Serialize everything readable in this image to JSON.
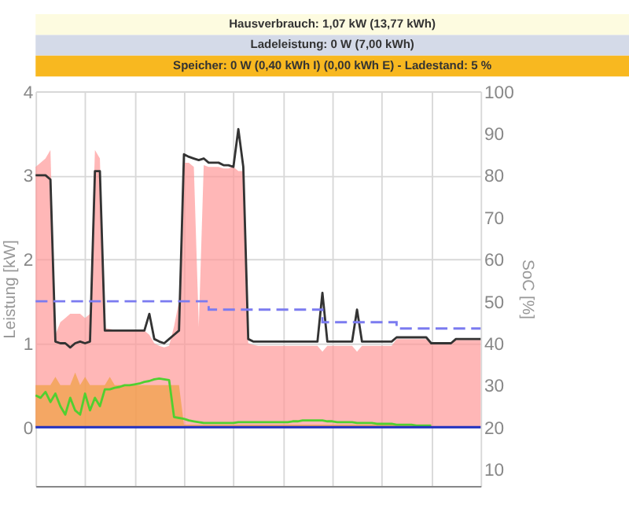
{
  "chart_data": {
    "type": "area",
    "annotations": [
      "Hausverbrauch: 1,07 kW (13,77 kWh)",
      "Ladeleistung: 0 W (7,00 kWh)",
      "Speicher: 0 W (0,40 kWh I) (0,00 kWh E)  - Ladestand: 5 %"
    ],
    "ylabel": "Leistung [kW]",
    "y2label": "SoC [%]",
    "categories": [
      null,
      null,
      null,
      null,
      null,
      null,
      null,
      null,
      null,
      null,
      null,
      null,
      null,
      null,
      null,
      null,
      null,
      null,
      null,
      null,
      null,
      null,
      null,
      null,
      null,
      null,
      null,
      null,
      null,
      null,
      null,
      null,
      null,
      null,
      null,
      null,
      null,
      null,
      null,
      null,
      null,
      null,
      null,
      null,
      null,
      null,
      null,
      null,
      null,
      null,
      null,
      null,
      null,
      null,
      null,
      null,
      null,
      null,
      null,
      null,
      null,
      null,
      null,
      null,
      null,
      null,
      null,
      null,
      null,
      null,
      null,
      null,
      null,
      null,
      null,
      null,
      null,
      null,
      null,
      null,
      null,
      null,
      null,
      null,
      null,
      null,
      null,
      null,
      null,
      null,
      null
    ],
    "series": [
      {
        "color": "#ff9999",
        "values": [
          3.1,
          3.15,
          3.2,
          3.3,
          1.1,
          1.25,
          1.3,
          1.35,
          1.35,
          1.35,
          1.3,
          1.35,
          3.3,
          3.2,
          1.18,
          1.17,
          1.16,
          1.16,
          1.16,
          1.16,
          1.16,
          1.16,
          1.15,
          1.1,
          1.0,
          0.97,
          0.95,
          0.97,
          1.2,
          1.5,
          3.15,
          3.15,
          3.1,
          1.2,
          3.12,
          3.1,
          3.1,
          3.1,
          3.08,
          3.08,
          3.1,
          3.05,
          3.05,
          1.0,
          0.98,
          0.97,
          0.97,
          0.97,
          0.97,
          0.97,
          0.97,
          0.97,
          0.97,
          0.97,
          0.97,
          0.97,
          0.97,
          0.97,
          0.9,
          0.97,
          0.97,
          0.97,
          0.97,
          0.97,
          0.97,
          0.9,
          0.97,
          0.97,
          0.97,
          0.97,
          0.97,
          0.97,
          0.97,
          1.05,
          1.05,
          1.05,
          1.05,
          1.05,
          1.05,
          1.05,
          1.0,
          1.0,
          1.0,
          1.0,
          1.0,
          1.04,
          1.04,
          1.04,
          1.04,
          1.04,
          1.04
        ]
      },
      {
        "color": "#f0a040",
        "values": [
          0.5,
          0.5,
          0.5,
          0.5,
          0.6,
          0.5,
          0.5,
          0.5,
          0.65,
          0.5,
          0.6,
          0.5,
          0.5,
          0.5,
          0.5,
          0.6,
          0.5,
          0.5,
          0.5,
          0.5,
          0.5,
          0.5,
          0.5,
          0.5,
          0.5,
          0.5,
          0.5,
          0.5,
          0.5,
          0.5,
          0.03,
          0.03,
          0.03,
          0.03,
          0.03,
          0.03,
          0.03,
          0.03,
          0.03,
          0.03,
          0.03,
          0.03,
          0.03,
          0.03,
          0.03,
          0.03,
          0.03,
          0.03,
          0.03,
          0.03,
          0.03,
          0.03,
          0.03,
          0.03,
          0.03,
          0.03,
          0.03,
          0.03,
          0.03,
          0.03,
          0.03,
          0.03,
          0.03,
          0.03,
          0.03,
          0.03,
          0.03,
          0.03,
          0.03,
          0.03,
          0.03,
          0.03,
          0.03,
          0.03,
          0.03,
          0.03,
          0.03,
          0.03,
          0.03,
          0.03,
          0.03,
          null,
          null,
          null,
          null,
          null,
          null,
          null,
          null,
          null,
          null
        ]
      },
      {
        "type": "line",
        "color": "#333333",
        "values": [
          3.0,
          3.0,
          3.0,
          2.95,
          1.02,
          1.0,
          1.0,
          0.95,
          1.0,
          1.02,
          1.0,
          1.02,
          3.05,
          3.05,
          1.15,
          1.15,
          1.15,
          1.15,
          1.15,
          1.15,
          1.15,
          1.15,
          1.15,
          1.35,
          1.05,
          1.02,
          1.0,
          1.05,
          1.1,
          1.15,
          3.25,
          3.22,
          3.2,
          3.18,
          3.2,
          3.15,
          3.15,
          3.15,
          3.12,
          3.12,
          3.1,
          3.55,
          3.1,
          1.05,
          1.02,
          1.02,
          1.02,
          1.02,
          1.02,
          1.02,
          1.02,
          1.02,
          1.02,
          1.02,
          1.02,
          1.02,
          1.02,
          1.02,
          1.6,
          1.02,
          1.02,
          1.02,
          1.02,
          1.02,
          1.02,
          1.4,
          1.02,
          1.02,
          1.02,
          1.02,
          1.02,
          1.02,
          1.02,
          1.07,
          1.07,
          1.07,
          1.07,
          1.07,
          1.07,
          1.07,
          1.0,
          1.0,
          1.0,
          1.0,
          1.0,
          1.05,
          1.05,
          1.05,
          1.05,
          1.05,
          1.05
        ]
      },
      {
        "type": "line",
        "color": "#50d030",
        "values": [
          0.38,
          0.35,
          0.42,
          0.3,
          0.4,
          0.25,
          0.15,
          0.35,
          0.2,
          0.15,
          0.4,
          0.2,
          0.35,
          0.25,
          0.45,
          0.45,
          0.47,
          0.48,
          0.5,
          0.5,
          0.51,
          0.52,
          0.54,
          0.55,
          0.57,
          0.58,
          0.57,
          0.56,
          0.12,
          0.11,
          0.1,
          0.08,
          0.07,
          0.06,
          0.05,
          0.05,
          0.05,
          0.05,
          0.05,
          0.05,
          0.05,
          0.06,
          0.06,
          0.06,
          0.06,
          0.06,
          0.06,
          0.06,
          0.06,
          0.06,
          0.06,
          0.06,
          0.07,
          0.07,
          0.08,
          0.08,
          0.08,
          0.08,
          0.08,
          0.07,
          0.07,
          0.06,
          0.06,
          0.06,
          0.06,
          0.05,
          0.05,
          0.05,
          0.05,
          0.04,
          0.04,
          0.04,
          0.04,
          0.03,
          0.03,
          0.03,
          0.03,
          0.02,
          0.02,
          0.02,
          0.02,
          null,
          null,
          null,
          null,
          null,
          null,
          null,
          null,
          null,
          null
        ]
      },
      {
        "type": "line",
        "color": "#2030c0",
        "values": [
          0,
          0,
          0,
          0,
          0,
          0,
          0,
          0,
          0,
          0,
          0,
          0,
          0,
          0,
          0,
          0,
          0,
          0,
          0,
          0,
          0,
          0,
          0,
          0,
          0,
          0,
          0,
          0,
          0,
          0,
          0,
          0,
          0,
          0,
          0,
          0,
          0,
          0,
          0,
          0,
          0,
          0,
          0,
          0,
          0,
          0,
          0,
          0,
          0,
          0,
          0,
          0,
          0,
          0,
          0,
          0,
          0,
          0,
          0,
          0,
          0,
          0,
          0,
          0,
          0,
          0,
          0,
          0,
          0,
          0,
          0,
          0,
          0,
          0,
          0,
          0,
          0,
          0,
          0,
          0,
          0,
          0,
          0,
          0,
          0,
          0,
          0,
          0,
          0,
          0,
          0
        ]
      },
      {
        "type": "step",
        "axis": "y2",
        "line_style": "dashed",
        "color": "#7b7bf0",
        "values": [
          50,
          50,
          50,
          50,
          50,
          50,
          50,
          50,
          50,
          50,
          50,
          50,
          50,
          50,
          50,
          50,
          50,
          50,
          50,
          50,
          50,
          50,
          50,
          50,
          50,
          50,
          50,
          50,
          50,
          50,
          50,
          50,
          50,
          50,
          50,
          48,
          48,
          48,
          48,
          48,
          48,
          48,
          48,
          48,
          48,
          48,
          48,
          48,
          48,
          48,
          48,
          48,
          48,
          48,
          48,
          48,
          48,
          48,
          45,
          45,
          45,
          45,
          45,
          45,
          45,
          45,
          45,
          45,
          45,
          45,
          45,
          45,
          45,
          43.5,
          43.5,
          43.5,
          43.5,
          43.5,
          43.5,
          43.5,
          43.5,
          43.5,
          43.5,
          43.5,
          43.5,
          43.5,
          43.5,
          43.5,
          43.5,
          43.5,
          43.5
        ]
      }
    ],
    "ylim": [
      -0.7,
      4
    ],
    "yticks": [
      0,
      1,
      2,
      3,
      4
    ],
    "y2lim": [
      6,
      100
    ],
    "y2ticks": [
      10,
      20,
      30,
      40,
      50,
      60,
      70,
      80,
      90,
      100
    ],
    "grid": true,
    "tick_labels": "y"
  }
}
